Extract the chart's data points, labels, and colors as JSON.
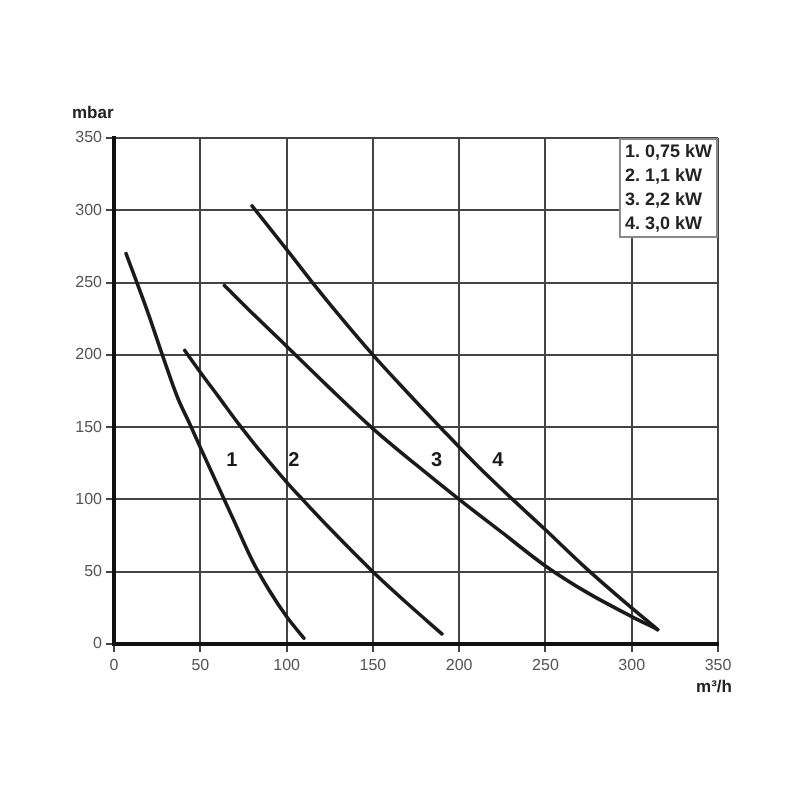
{
  "chart_data": {
    "type": "line",
    "xlabel": "m³/h",
    "ylabel": "mbar",
    "xlim": [
      0,
      350
    ],
    "xticks": [
      0,
      50,
      100,
      150,
      200,
      250,
      300,
      350
    ],
    "ylim": [
      0,
      350
    ],
    "yticks": [
      0,
      50,
      100,
      150,
      200,
      250,
      300,
      350
    ],
    "grid": true,
    "series": [
      {
        "name": "1",
        "color": "#1a1a1a",
        "x": [
          7,
          20,
          28,
          37,
          44,
          50,
          60,
          70,
          80,
          90,
          100,
          110
        ],
        "values": [
          270,
          228,
          200,
          170,
          152,
          136,
          110,
          84,
          58,
          37,
          19,
          4
        ]
      },
      {
        "name": "2",
        "color": "#1a1a1a",
        "x": [
          41,
          50,
          60,
          73,
          85,
          100,
          110,
          125,
          150,
          170,
          190
        ],
        "values": [
          203,
          188,
          172,
          151,
          133,
          112,
          99,
          80,
          50,
          28,
          7
        ]
      },
      {
        "name": "3",
        "color": "#1a1a1a",
        "x": [
          64,
          80,
          100,
          125,
          150,
          175,
          200,
          225,
          250,
          275,
          300,
          315
        ],
        "values": [
          248,
          229,
          206,
          177,
          149,
          124,
          100,
          77,
          54,
          35,
          19,
          10
        ]
      },
      {
        "name": "4",
        "color": "#1a1a1a",
        "x": [
          80,
          100,
          115,
          130,
          150,
          170,
          189,
          210,
          231,
          250,
          273,
          295,
          315
        ],
        "values": [
          303,
          273,
          250,
          228,
          200,
          174,
          150,
          124,
          100,
          79,
          53,
          30,
          10
        ]
      }
    ],
    "annotations": [
      "1. 0,75 kW",
      "2. 1,1 kW",
      "3. 2,2 kW",
      "4. 3,0 kW"
    ]
  }
}
